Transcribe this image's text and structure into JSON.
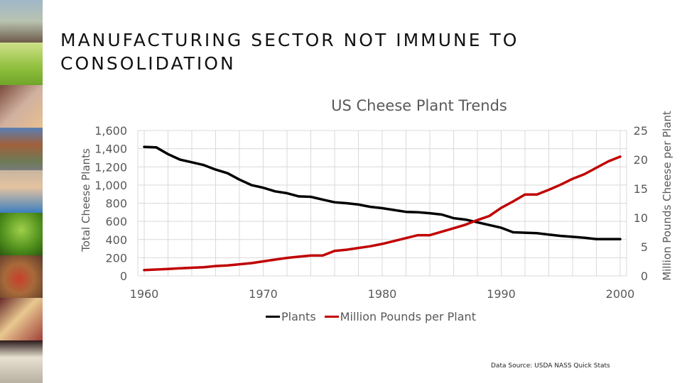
{
  "slide": {
    "title": "MANUFACTURING SECTOR NOT IMMUNE TO CONSOLIDATION",
    "side_images": [
      "tractor-farmer",
      "dairy-cows",
      "people-sharing-pizza",
      "office-building",
      "boy-eating-pizza",
      "sprout-seedling",
      "pizza",
      "friends-eating",
      "cheese-blocks"
    ]
  },
  "source_note": "Data Source: USDA NASS Quick Stats",
  "chart_data": {
    "type": "line",
    "title": "US Cheese Plant Trends",
    "xlabel": "",
    "ylabel": "Total Cheese Plants",
    "y2label": "Million Pounds Cheese per Plant",
    "xlim": [
      1960,
      2000
    ],
    "ylim": [
      0,
      1600
    ],
    "y2lim": [
      0,
      25
    ],
    "x_ticks": [
      "1960",
      "1970",
      "1980",
      "1990",
      "2000"
    ],
    "y_ticks": [
      "0",
      "200",
      "400",
      "600",
      "800",
      "1,000",
      "1,200",
      "1,400",
      "1,600"
    ],
    "y2_ticks": [
      "0",
      "5",
      "10",
      "15",
      "20",
      "25"
    ],
    "grid": true,
    "legend_position": "bottom",
    "x": [
      1960,
      1961,
      1962,
      1963,
      1964,
      1965,
      1966,
      1967,
      1968,
      1969,
      1970,
      1971,
      1972,
      1973,
      1974,
      1975,
      1976,
      1977,
      1978,
      1979,
      1980,
      1981,
      1982,
      1983,
      1984,
      1985,
      1986,
      1987,
      1988,
      1989,
      1990,
      1991,
      1992,
      1993,
      1994,
      1995,
      1996,
      1997,
      1998,
      1999,
      2000
    ],
    "series": [
      {
        "name": "Plants",
        "axis": "left",
        "color": "#000000",
        "values": [
          1420,
          1415,
          1340,
          1280,
          1250,
          1220,
          1170,
          1130,
          1060,
          1000,
          970,
          930,
          910,
          875,
          870,
          840,
          810,
          800,
          785,
          760,
          745,
          725,
          705,
          700,
          690,
          675,
          635,
          620,
          590,
          560,
          530,
          480,
          475,
          470,
          455,
          440,
          430,
          420,
          405,
          405,
          405
        ]
      },
      {
        "name": "Million Pounds per Plant",
        "axis": "right",
        "color": "#c00000",
        "values": [
          1.0,
          1.1,
          1.2,
          1.3,
          1.4,
          1.5,
          1.7,
          1.8,
          2.0,
          2.2,
          2.5,
          2.8,
          3.1,
          3.3,
          3.5,
          3.5,
          4.3,
          4.5,
          4.8,
          5.1,
          5.5,
          6.0,
          6.5,
          7.0,
          7.0,
          7.6,
          8.2,
          8.8,
          9.6,
          10.3,
          11.7,
          12.8,
          14.0,
          14.0,
          14.8,
          15.7,
          16.7,
          17.5,
          18.6,
          19.7,
          20.5
        ]
      }
    ]
  }
}
